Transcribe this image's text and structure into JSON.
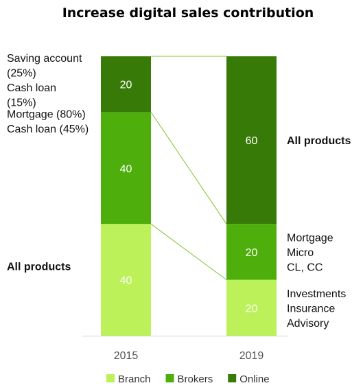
{
  "chart_data": {
    "type": "bar",
    "stacked": true,
    "title": "Increase digital sales contribution",
    "categories": [
      "2015",
      "2019"
    ],
    "series": [
      {
        "name": "Branch",
        "values": [
          40,
          20
        ],
        "color": "#bdf159"
      },
      {
        "name": "Brokers",
        "values": [
          40,
          20
        ],
        "color": "#4eae0b"
      },
      {
        "name": "Online",
        "values": [
          20,
          60
        ],
        "color": "#387a08"
      }
    ],
    "ylim": [
      0,
      100
    ],
    "legend": "bottom",
    "grid": false,
    "annotations": {
      "2015": {
        "Online": [
          "Saving account",
          "(25%)",
          "Cash loan",
          "(15%)"
        ],
        "Brokers": [
          "Mortgage (80%)",
          "Cash loan (45%)"
        ],
        "Branch": [
          "All products"
        ]
      },
      "2019": {
        "Online": [
          "All products"
        ],
        "Brokers": [
          "Mortgage",
          "Micro",
          "CL, CC"
        ],
        "Branch": [
          "Investments",
          "Insurance",
          "Advisory"
        ]
      }
    }
  }
}
